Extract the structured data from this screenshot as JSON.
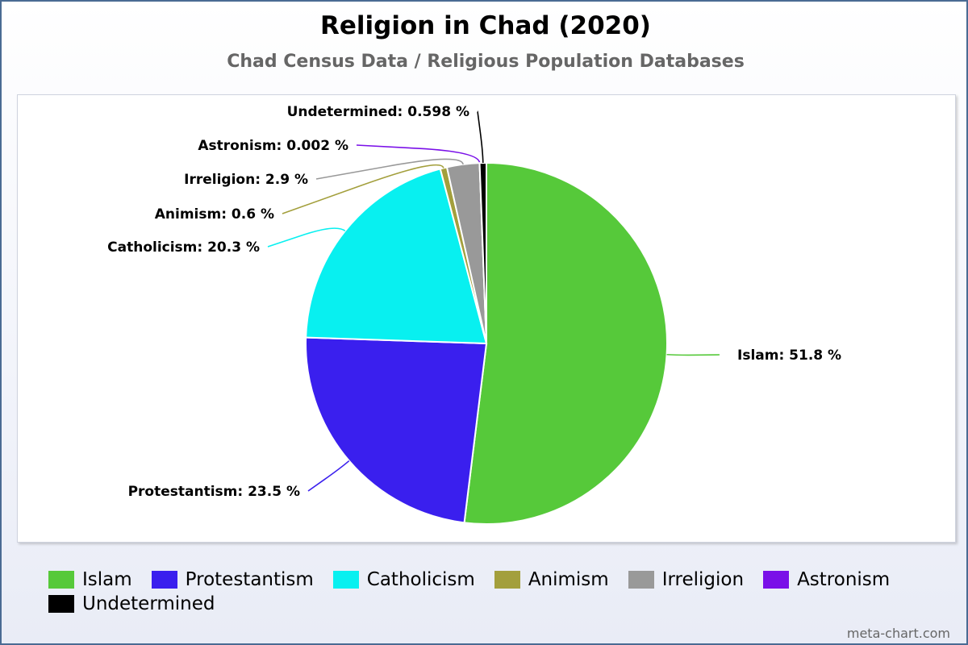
{
  "chart_data": {
    "type": "pie",
    "title": "Religion in Chad (2020)",
    "subtitle": "Chad Census Data / Religious Population Databases",
    "slices": [
      {
        "name": "Islam",
        "value": 51.8,
        "label": "Islam: 51.8 %",
        "color": "#56c93a"
      },
      {
        "name": "Protestantism",
        "value": 23.5,
        "label": "Protestantism: 23.5 %",
        "color": "#3a1fee"
      },
      {
        "name": "Catholicism",
        "value": 20.3,
        "label": "Catholicism: 20.3 %",
        "color": "#08f0f0"
      },
      {
        "name": "Animism",
        "value": 0.6,
        "label": "Animism: 0.6 %",
        "color": "#a39f3c"
      },
      {
        "name": "Irreligion",
        "value": 2.9,
        "label": "Irreligion: 2.9 %",
        "color": "#999999"
      },
      {
        "name": "Astronism",
        "value": 0.002,
        "label": "Astronism: 0.002 %",
        "color": "#7a10e8"
      },
      {
        "name": "Undetermined",
        "value": 0.598,
        "label": "Undetermined: 0.598 %",
        "color": "#000000"
      }
    ],
    "legend_position": "bottom"
  },
  "credit": "meta-chart.com"
}
